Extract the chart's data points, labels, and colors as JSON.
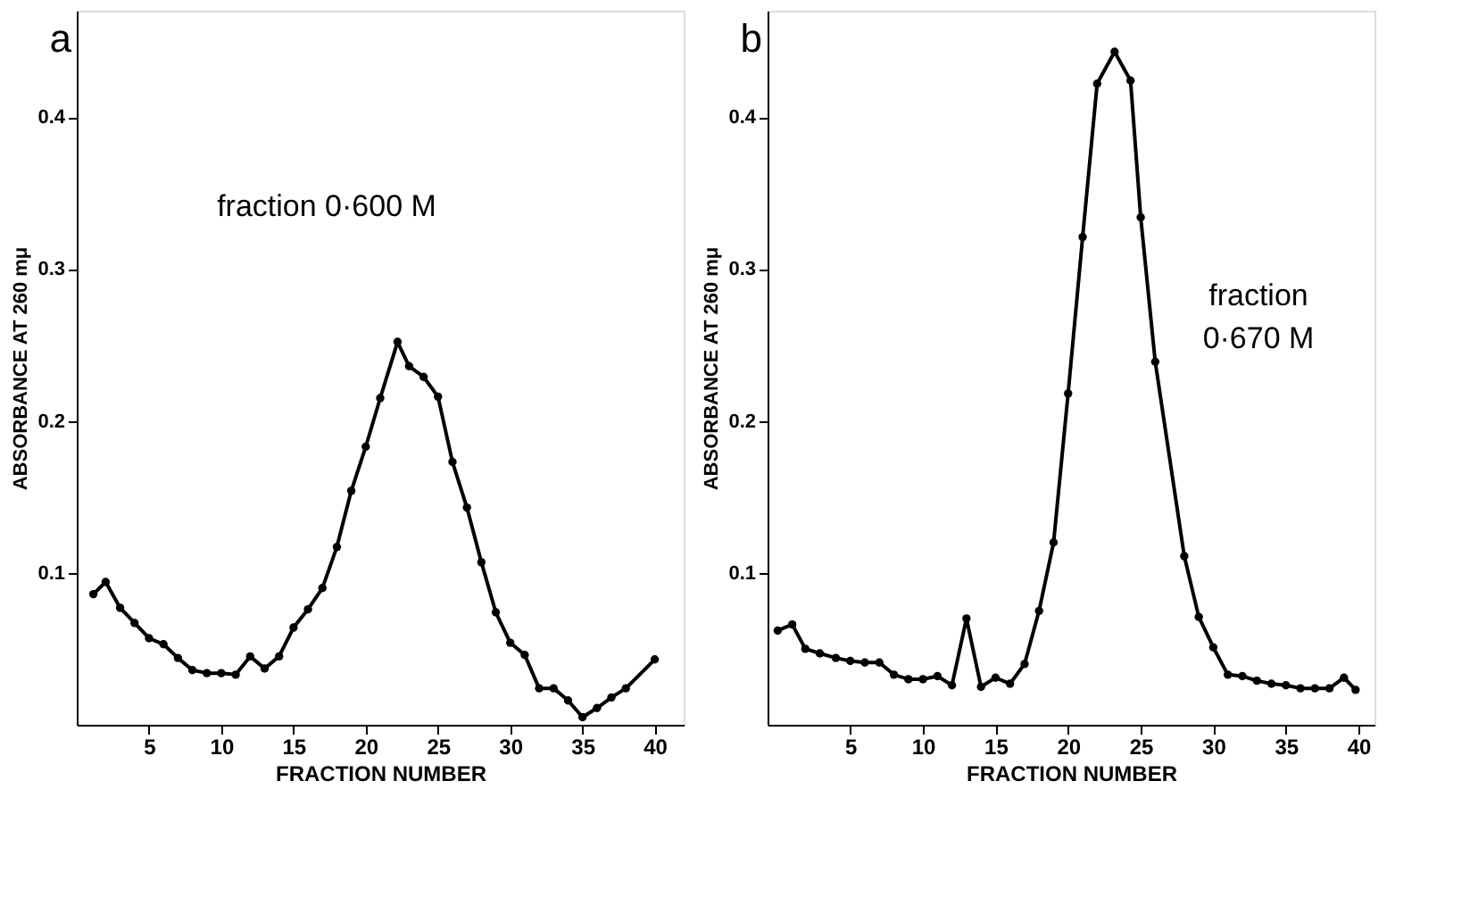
{
  "chart_data": [
    {
      "type": "line",
      "title": "a",
      "xlabel": "FRACTION   NUMBER",
      "ylabel": "ABSORBANCE   AT   260 mμ",
      "annotations": [
        "fraction   0·600 M"
      ],
      "marker": "circle",
      "line_style": "solid",
      "grid": false,
      "xlim": [
        0,
        42
      ],
      "xticks": [
        5,
        10,
        15,
        20,
        25,
        30,
        35,
        40
      ],
      "ylim": [
        0,
        0.47
      ],
      "yticks": [
        0.1,
        0.2,
        0.3,
        0.4
      ],
      "series": [
        {
          "color": "#000000",
          "x": [
            1.15,
            2,
            3,
            4,
            5,
            6,
            7,
            8,
            9,
            10,
            11,
            12,
            13,
            14,
            15,
            16,
            17,
            18,
            19,
            20,
            21,
            22.2,
            23,
            24,
            25,
            26,
            27,
            28,
            29,
            30,
            31,
            32,
            33,
            34,
            35,
            36,
            37,
            38,
            40
          ],
          "values": [
            0.086,
            0.094,
            0.077,
            0.067,
            0.057,
            0.053,
            0.044,
            0.036,
            0.034,
            0.034,
            0.033,
            0.045,
            0.037,
            0.045,
            0.064,
            0.076,
            0.09,
            0.117,
            0.154,
            0.183,
            0.215,
            0.252,
            0.236,
            0.229,
            0.216,
            0.173,
            0.143,
            0.107,
            0.074,
            0.054,
            0.046,
            0.024,
            0.024,
            0.016,
            0.005,
            0.011,
            0.018,
            0.024,
            0.043
          ]
        }
      ]
    },
    {
      "type": "line",
      "title": "b",
      "xlabel": "FRACTION   NUMBER",
      "ylabel": "ABSORBANCE   AT   260 mμ",
      "annotations": [
        "fraction",
        "0·670 M"
      ],
      "marker": "circle",
      "line_style": "solid",
      "grid": false,
      "xlim": [
        -0.7,
        41.1
      ],
      "xticks": [
        5,
        10,
        15,
        20,
        25,
        30,
        35,
        40
      ],
      "ylim": [
        0,
        0.47
      ],
      "yticks": [
        0.1,
        0.2,
        0.3,
        0.4
      ],
      "series": [
        {
          "color": "#000000",
          "x": [
            0,
            1,
            1.9,
            2.9,
            4,
            5,
            6,
            7,
            8,
            9,
            10,
            11,
            12,
            13,
            14,
            15,
            16,
            17,
            18,
            19,
            20,
            21,
            22,
            23.2,
            24.3,
            25,
            26,
            28,
            29,
            30,
            31,
            32,
            33,
            34,
            35,
            36,
            37,
            38,
            39,
            39.8
          ],
          "values": [
            0.062,
            0.066,
            0.05,
            0.047,
            0.044,
            0.042,
            0.041,
            0.041,
            0.033,
            0.03,
            0.03,
            0.032,
            0.026,
            0.07,
            0.025,
            0.031,
            0.027,
            0.04,
            0.075,
            0.12,
            0.218,
            0.321,
            0.422,
            0.443,
            0.424,
            0.334,
            0.239,
            0.111,
            0.071,
            0.051,
            0.033,
            0.032,
            0.029,
            0.027,
            0.026,
            0.024,
            0.024,
            0.024,
            0.031,
            0.023
          ]
        }
      ]
    }
  ]
}
